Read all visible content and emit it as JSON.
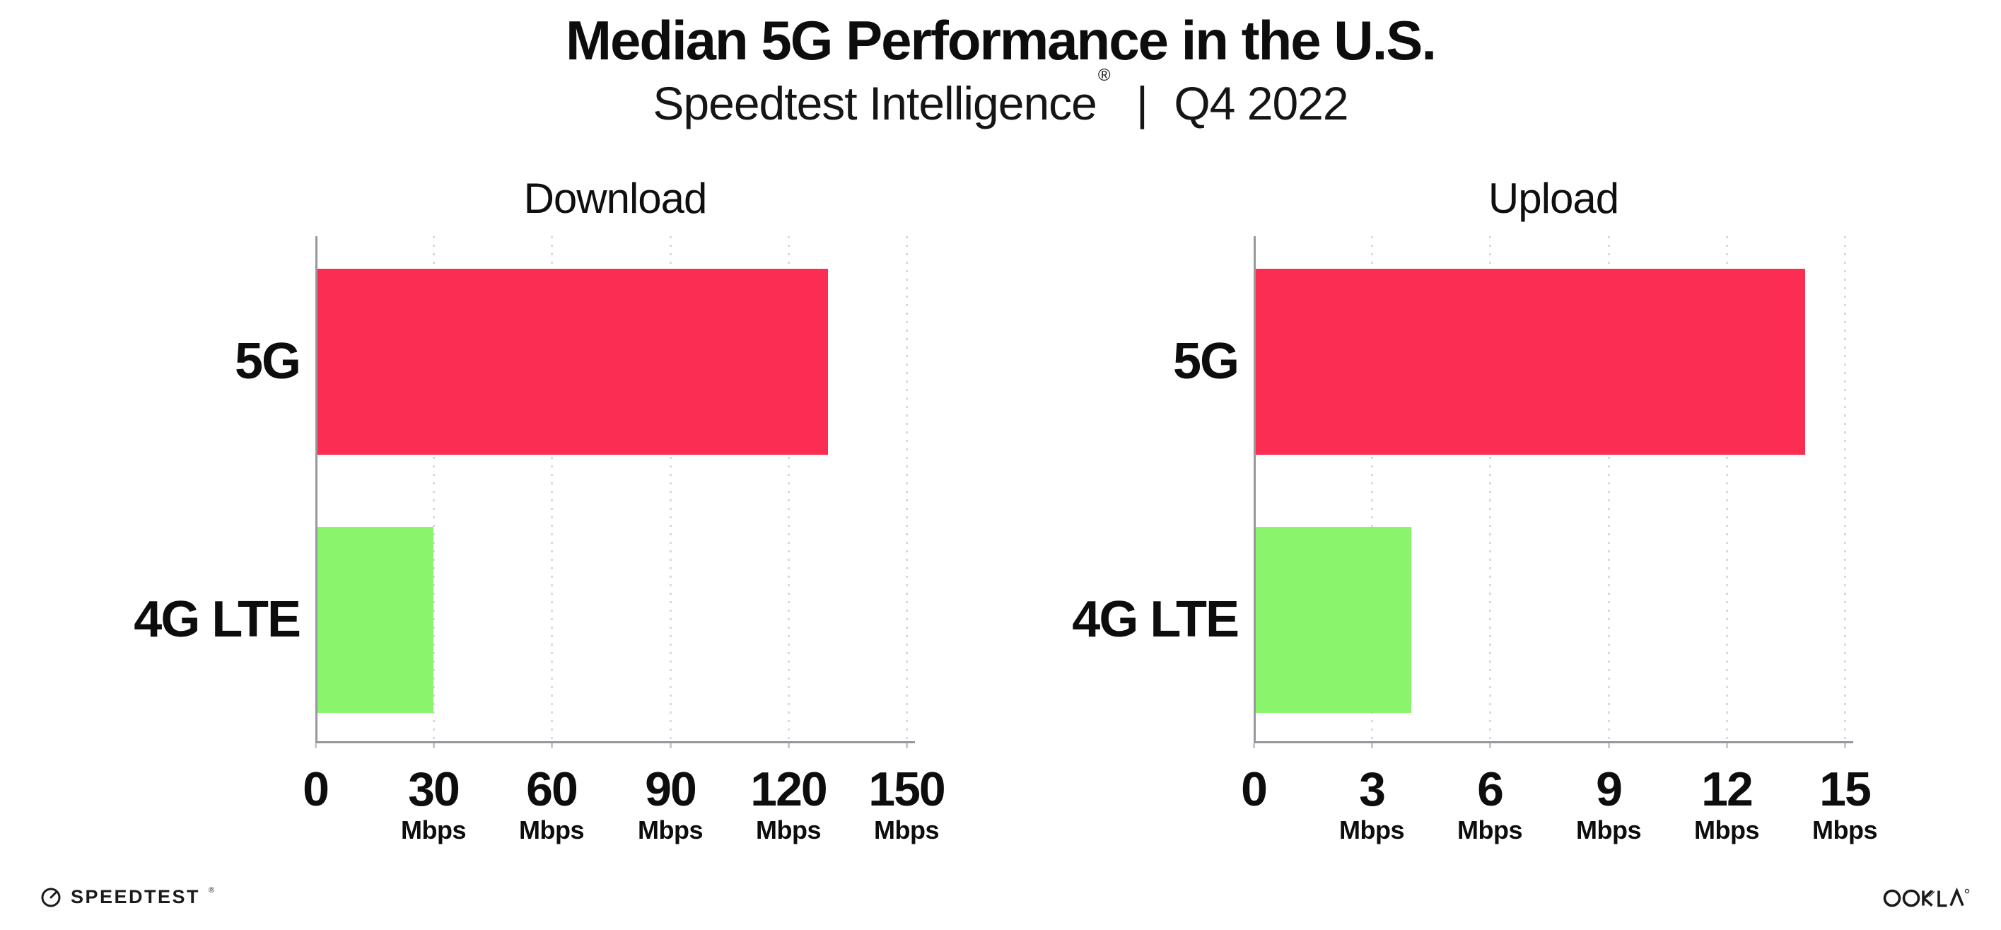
{
  "header": {
    "title": "Median 5G Performance in the U.S.",
    "subtitle_brand": "Speedtest Intelligence",
    "subtitle_registered": "®",
    "subtitle_separator": "|",
    "subtitle_period": "Q4 2022"
  },
  "chart_data": [
    {
      "type": "bar",
      "orientation": "horizontal",
      "title": "Download",
      "categories": [
        "5G",
        "4G LTE"
      ],
      "values": [
        130,
        30
      ],
      "unit": "Mbps",
      "xlim": [
        0,
        150
      ],
      "xticks": [
        0,
        30,
        60,
        90,
        120,
        150
      ],
      "xtick_unit": "Mbps",
      "bar_colors": [
        "#fb2d52",
        "#8af56c"
      ],
      "grid": "vertical-dotted",
      "legend": "none",
      "xlabel": "",
      "ylabel": ""
    },
    {
      "type": "bar",
      "orientation": "horizontal",
      "title": "Upload",
      "categories": [
        "5G",
        "4G LTE"
      ],
      "values": [
        14,
        4
      ],
      "unit": "Mbps",
      "xlim": [
        0,
        15
      ],
      "xticks": [
        0,
        3,
        6,
        9,
        12,
        15
      ],
      "xtick_unit": "Mbps",
      "bar_colors": [
        "#fb2d52",
        "#8af56c"
      ],
      "grid": "vertical-dotted",
      "legend": "none",
      "xlabel": "",
      "ylabel": ""
    }
  ],
  "footer": {
    "speedtest_label": "SPEEDTEST",
    "speedtest_trademark": "®",
    "speedtest_icon": "gauge-icon",
    "ookla_label": "OOKLA",
    "ookla_trademark": "®"
  },
  "colors": {
    "bar_5g": "#fb2d52",
    "bar_4g_lte": "#8af56c",
    "axis": "#97979e",
    "gridline": "#d9d9e2",
    "text": "#0d0d0d",
    "background": "#ffffff"
  }
}
